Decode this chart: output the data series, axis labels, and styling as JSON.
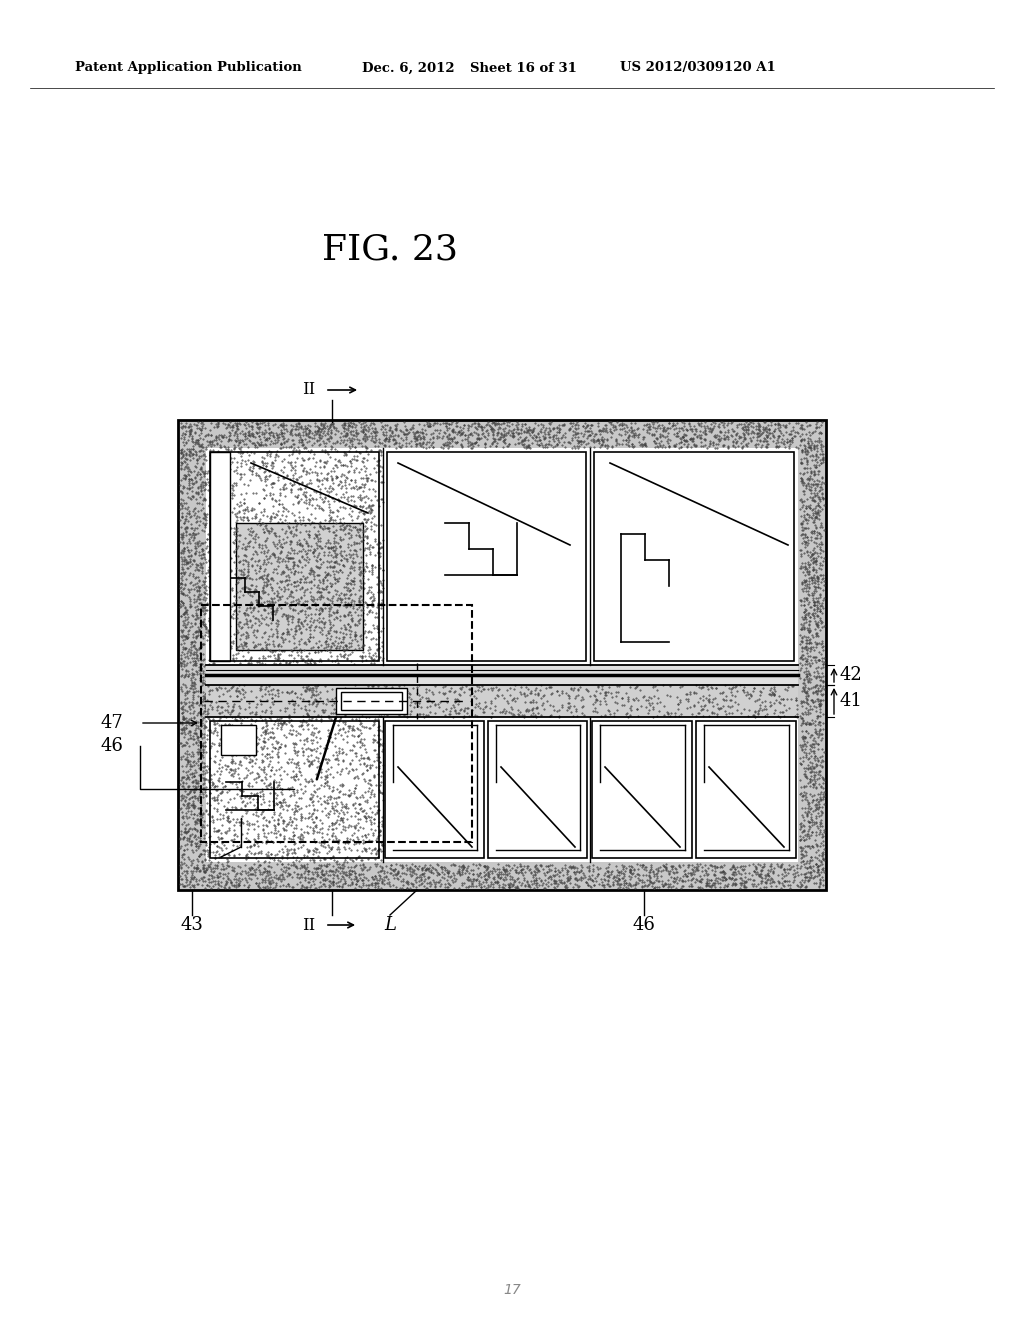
{
  "bg_color": "#ffffff",
  "header_left": "Patent Application Publication",
  "header_mid": "Dec. 6, 2012   Sheet 16 of 31",
  "header_right": "US 2012/0309120 A1",
  "fig_title": "FIG. 23",
  "page_num": "17"
}
